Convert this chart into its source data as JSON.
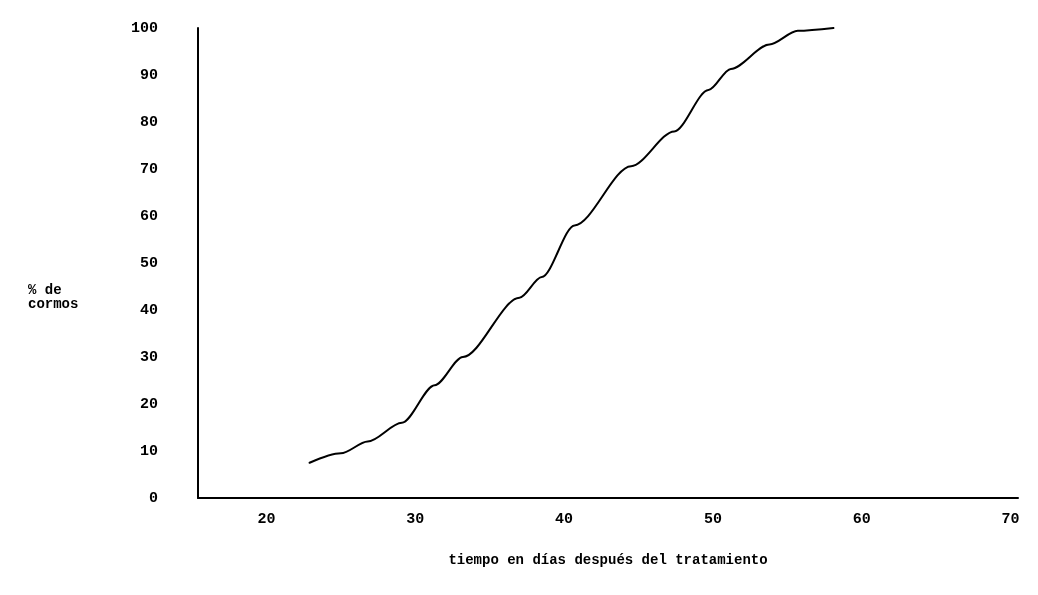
{
  "chart_data": {
    "type": "line",
    "xlabel": "tiempo en días después del tratamiento",
    "ylabel": "% de\ncormos",
    "series": [
      {
        "color": "#000000",
        "x": [
          22.9,
          25,
          26.8,
          29.1,
          31.3,
          33.2,
          37,
          38.5,
          40.7,
          44.5,
          47.4,
          49.7,
          51.2,
          53.8,
          55.7,
          58.1
        ],
        "values": [
          7.5,
          9.5,
          12,
          16,
          24,
          30,
          42.6,
          47,
          58,
          70.6,
          78,
          86.8,
          91.3,
          96.5,
          99.4,
          100
        ]
      }
    ],
    "xlim": [
      15.4,
      70.5
    ],
    "xticks": [
      20,
      30,
      40,
      50,
      60,
      70
    ],
    "ylim": [
      0,
      100
    ],
    "yticks": [
      0,
      10,
      20,
      30,
      40,
      50,
      60,
      70,
      80,
      90,
      100
    ],
    "grid": false,
    "marker": "none",
    "line_style": "solid"
  }
}
